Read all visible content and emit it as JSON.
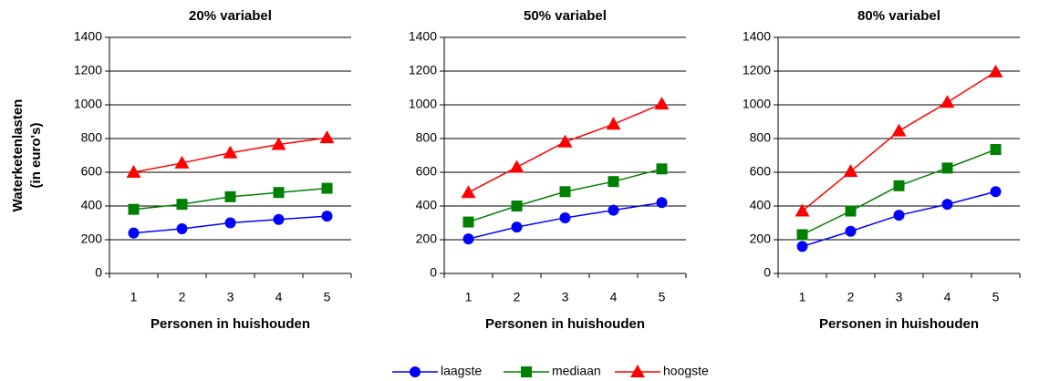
{
  "chart_data": [
    {
      "type": "line",
      "title": "20%  variabel",
      "ylabel": [
        "Waterketenlasten",
        "(in euro's)"
      ],
      "xlabel": "Personen in huishouden",
      "categories": [
        "1",
        "2",
        "3",
        "4",
        "5"
      ],
      "ylim": [
        0,
        1400
      ],
      "yticks": [
        0,
        200,
        400,
        600,
        800,
        1000,
        1200,
        1400
      ],
      "grid": true,
      "series": [
        {
          "name": "laagste",
          "color": "#0000ff",
          "marker": "circle",
          "values": [
            240,
            265,
            300,
            320,
            340
          ]
        },
        {
          "name": "mediaan",
          "color": "#008000",
          "marker": "square",
          "values": [
            380,
            410,
            455,
            480,
            505
          ]
        },
        {
          "name": "hoogste",
          "color": "#ff0000",
          "marker": "triangle",
          "values": [
            600,
            655,
            715,
            765,
            805
          ]
        }
      ]
    },
    {
      "type": "line",
      "title": "50%  variabel",
      "xlabel": "Personen in huishouden",
      "categories": [
        "1",
        "2",
        "3",
        "4",
        "5"
      ],
      "ylim": [
        0,
        1400
      ],
      "yticks": [
        0,
        200,
        400,
        600,
        800,
        1000,
        1200,
        1400
      ],
      "grid": true,
      "series": [
        {
          "name": "laagste",
          "color": "#0000ff",
          "marker": "circle",
          "values": [
            205,
            275,
            330,
            375,
            420
          ]
        },
        {
          "name": "mediaan",
          "color": "#008000",
          "marker": "square",
          "values": [
            305,
            400,
            485,
            545,
            620
          ]
        },
        {
          "name": "hoogste",
          "color": "#ff0000",
          "marker": "triangle",
          "values": [
            480,
            630,
            780,
            885,
            1005
          ]
        }
      ]
    },
    {
      "type": "line",
      "title": "80%  variabel",
      "xlabel": "Personen in huishouden",
      "categories": [
        "1",
        "2",
        "3",
        "4",
        "5"
      ],
      "ylim": [
        0,
        1400
      ],
      "yticks": [
        0,
        200,
        400,
        600,
        800,
        1000,
        1200,
        1400
      ],
      "grid": true,
      "series": [
        {
          "name": "laagste",
          "color": "#0000ff",
          "marker": "circle",
          "values": [
            160,
            250,
            345,
            410,
            485
          ]
        },
        {
          "name": "mediaan",
          "color": "#008000",
          "marker": "square",
          "values": [
            230,
            370,
            520,
            625,
            735
          ]
        },
        {
          "name": "hoogste",
          "color": "#ff0000",
          "marker": "triangle",
          "values": [
            370,
            605,
            845,
            1015,
            1195
          ]
        }
      ]
    }
  ]
}
